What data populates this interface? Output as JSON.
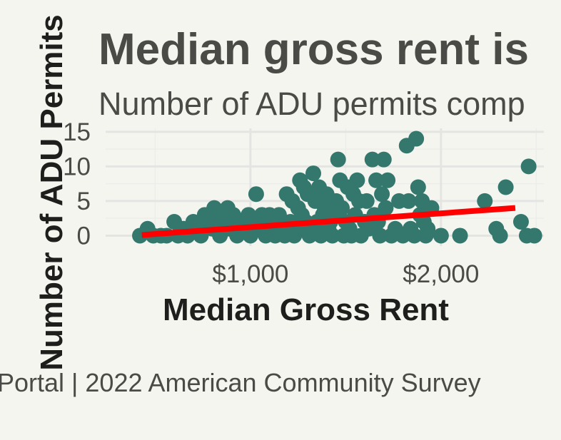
{
  "chart_data": {
    "type": "scatter",
    "title": "Median gross rent is",
    "subtitle": "Number of ADU permits comp",
    "xlabel": "Median Gross Rent",
    "ylabel": "Number of ADU Permits",
    "caption": "Portal | 2022 American Community Survey",
    "xlim": [
      240,
      2540
    ],
    "ylim": [
      -1.5,
      15.5
    ],
    "x_ticks": [
      {
        "value": 1000,
        "label": "$1,000"
      },
      {
        "value": 2000,
        "label": "$2,000"
      }
    ],
    "y_ticks": [
      {
        "value": 0,
        "label": "0"
      },
      {
        "value": 5,
        "label": "5"
      },
      {
        "value": 10,
        "label": "10"
      },
      {
        "value": 15,
        "label": "15"
      }
    ],
    "grid": true,
    "point_color": "#33776d",
    "trend_color": "#ff0000",
    "trend_line": {
      "x": [
        430,
        2390
      ],
      "y": [
        0.1,
        4.0
      ]
    },
    "points": [
      [
        420,
        0
      ],
      [
        460,
        1
      ],
      [
        490,
        0
      ],
      [
        530,
        0
      ],
      [
        560,
        0
      ],
      [
        600,
        2
      ],
      [
        620,
        0
      ],
      [
        650,
        1
      ],
      [
        670,
        0
      ],
      [
        700,
        2
      ],
      [
        720,
        1
      ],
      [
        740,
        0
      ],
      [
        760,
        3
      ],
      [
        780,
        2
      ],
      [
        800,
        1
      ],
      [
        810,
        4
      ],
      [
        830,
        3
      ],
      [
        840,
        0
      ],
      [
        860,
        2
      ],
      [
        880,
        4
      ],
      [
        890,
        1
      ],
      [
        910,
        3
      ],
      [
        930,
        0
      ],
      [
        950,
        2
      ],
      [
        970,
        1
      ],
      [
        990,
        3
      ],
      [
        1000,
        0
      ],
      [
        1020,
        2
      ],
      [
        1030,
        6
      ],
      [
        1050,
        1
      ],
      [
        1060,
        3
      ],
      [
        1080,
        0
      ],
      [
        1090,
        2
      ],
      [
        1100,
        3
      ],
      [
        1120,
        1
      ],
      [
        1130,
        0
      ],
      [
        1150,
        3
      ],
      [
        1160,
        2
      ],
      [
        1180,
        0
      ],
      [
        1190,
        6
      ],
      [
        1200,
        1
      ],
      [
        1210,
        2
      ],
      [
        1220,
        5
      ],
      [
        1230,
        0
      ],
      [
        1240,
        1
      ],
      [
        1250,
        4
      ],
      [
        1260,
        8
      ],
      [
        1270,
        3
      ],
      [
        1280,
        7
      ],
      [
        1290,
        2
      ],
      [
        1300,
        6
      ],
      [
        1310,
        0
      ],
      [
        1320,
        1
      ],
      [
        1330,
        9
      ],
      [
        1340,
        5
      ],
      [
        1350,
        2
      ],
      [
        1360,
        7
      ],
      [
        1370,
        0
      ],
      [
        1380,
        3
      ],
      [
        1390,
        4
      ],
      [
        1400,
        6
      ],
      [
        1410,
        1
      ],
      [
        1420,
        2
      ],
      [
        1430,
        0
      ],
      [
        1440,
        3
      ],
      [
        1450,
        5
      ],
      [
        1460,
        11
      ],
      [
        1470,
        8
      ],
      [
        1480,
        4
      ],
      [
        1490,
        0
      ],
      [
        1500,
        2
      ],
      [
        1510,
        7
      ],
      [
        1520,
        1
      ],
      [
        1530,
        0
      ],
      [
        1540,
        6
      ],
      [
        1550,
        3
      ],
      [
        1560,
        8
      ],
      [
        1570,
        5
      ],
      [
        1580,
        0
      ],
      [
        1600,
        2
      ],
      [
        1610,
        5
      ],
      [
        1620,
        1
      ],
      [
        1640,
        11
      ],
      [
        1650,
        3
      ],
      [
        1660,
        8
      ],
      [
        1670,
        2
      ],
      [
        1680,
        0
      ],
      [
        1690,
        6
      ],
      [
        1700,
        11
      ],
      [
        1710,
        4
      ],
      [
        1720,
        8
      ],
      [
        1740,
        0
      ],
      [
        1760,
        1
      ],
      [
        1780,
        5
      ],
      [
        1800,
        0
      ],
      [
        1820,
        13
      ],
      [
        1830,
        5
      ],
      [
        1840,
        1
      ],
      [
        1860,
        0
      ],
      [
        1870,
        14
      ],
      [
        1880,
        7
      ],
      [
        1890,
        3
      ],
      [
        1900,
        5
      ],
      [
        1910,
        2
      ],
      [
        1920,
        0
      ],
      [
        1930,
        1
      ],
      [
        1950,
        4
      ],
      [
        2000,
        0
      ],
      [
        2100,
        0
      ],
      [
        2230,
        5
      ],
      [
        2290,
        1
      ],
      [
        2310,
        0
      ],
      [
        2340,
        7
      ],
      [
        2420,
        2
      ],
      [
        2450,
        0
      ],
      [
        2460,
        10
      ],
      [
        2490,
        0
      ]
    ]
  }
}
